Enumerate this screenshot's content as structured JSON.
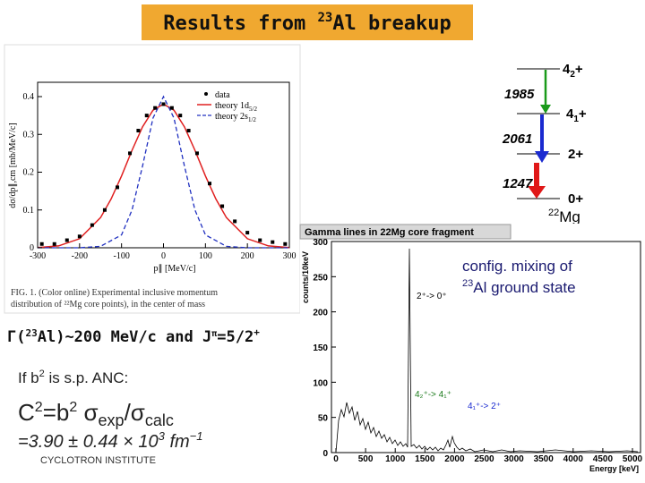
{
  "title": {
    "prefix": "Results from ",
    "sup": "23",
    "suffix": "Al breakup"
  },
  "momentum_plot": {
    "legend": {
      "data": "data",
      "theory1": "theory 1d",
      "theory1_sub": "5/2",
      "theory2": "theory 2s",
      "theory2_sub": "1/2"
    },
    "y_label": "dσ/dp∥,cm [mb/MeV/c]",
    "x_label": "p∥ [MeV/c]",
    "xticks": [
      -300,
      -200,
      -100,
      0,
      100,
      200,
      300
    ],
    "yticks": [
      0,
      0.1,
      0.2,
      0.3,
      0.4
    ],
    "points": {
      "x": [
        -290,
        -260,
        -230,
        -200,
        -170,
        -140,
        -110,
        -80,
        -60,
        -40,
        -20,
        0,
        20,
        40,
        60,
        80,
        110,
        140,
        170,
        200,
        230,
        260,
        290
      ],
      "y": [
        0.01,
        0.01,
        0.02,
        0.03,
        0.06,
        0.1,
        0.16,
        0.25,
        0.31,
        0.35,
        0.37,
        0.38,
        0.37,
        0.35,
        0.31,
        0.25,
        0.17,
        0.11,
        0.07,
        0.04,
        0.02,
        0.015,
        0.01
      ]
    },
    "caption_line1": "FIG. 1.   (Color online)  Experimental  inclusive  momentum",
    "caption_line2": "distribution of ²²Mg core  points), in the center of mass"
  },
  "level_scheme": {
    "levels": [
      "4",
      "4",
      "2+",
      "0+"
    ],
    "level_subs": [
      "2",
      "1"
    ],
    "plus": "+",
    "energies": [
      "1985",
      "2061",
      "1247"
    ],
    "nucleus_sup": "22",
    "nucleus": "Mg"
  },
  "spectrum": {
    "title": "Gamma lines in 22Mg core fragment",
    "y_label": "counts/10keV",
    "x_label": "Energy [keV]",
    "xticks": [
      0,
      500,
      1000,
      1500,
      2000,
      2500,
      3000,
      3500,
      4000,
      4500,
      5000
    ],
    "yticks": [
      0,
      50,
      100,
      150,
      200,
      250,
      300
    ],
    "annot_1": "2⁺-> 0⁺",
    "annot_2": "4₂⁺-> 4₁⁺",
    "annot_3": "4₁⁺-> 2⁺"
  },
  "mixing_note": {
    "line1": "config. mixing of",
    "sup": "23",
    "line2": "Al ground state"
  },
  "width_line": {
    "gamma": "Γ(",
    "sup": "23",
    "rest": "Al)~200 MeV/c  and  J",
    "pi": "π",
    "spin": "=5/2",
    "plus": "+"
  },
  "anc_line": {
    "text": "If b",
    "sup": "2",
    "rest": " is  s.p. ANC:"
  },
  "c2_line": {
    "c": "C",
    "sup1": "2",
    "eq": "=b",
    "sup2": "2",
    "sig": " σ",
    "sub1": "exp",
    "slash": "/σ",
    "sub2": "calc"
  },
  "result_line": {
    "text": "=3.90 ± 0.44 × 10",
    "sup": "3",
    "unit": " fm",
    "unit_sup": "−1"
  },
  "footer": "CYCLOTRON INSTITUTE"
}
